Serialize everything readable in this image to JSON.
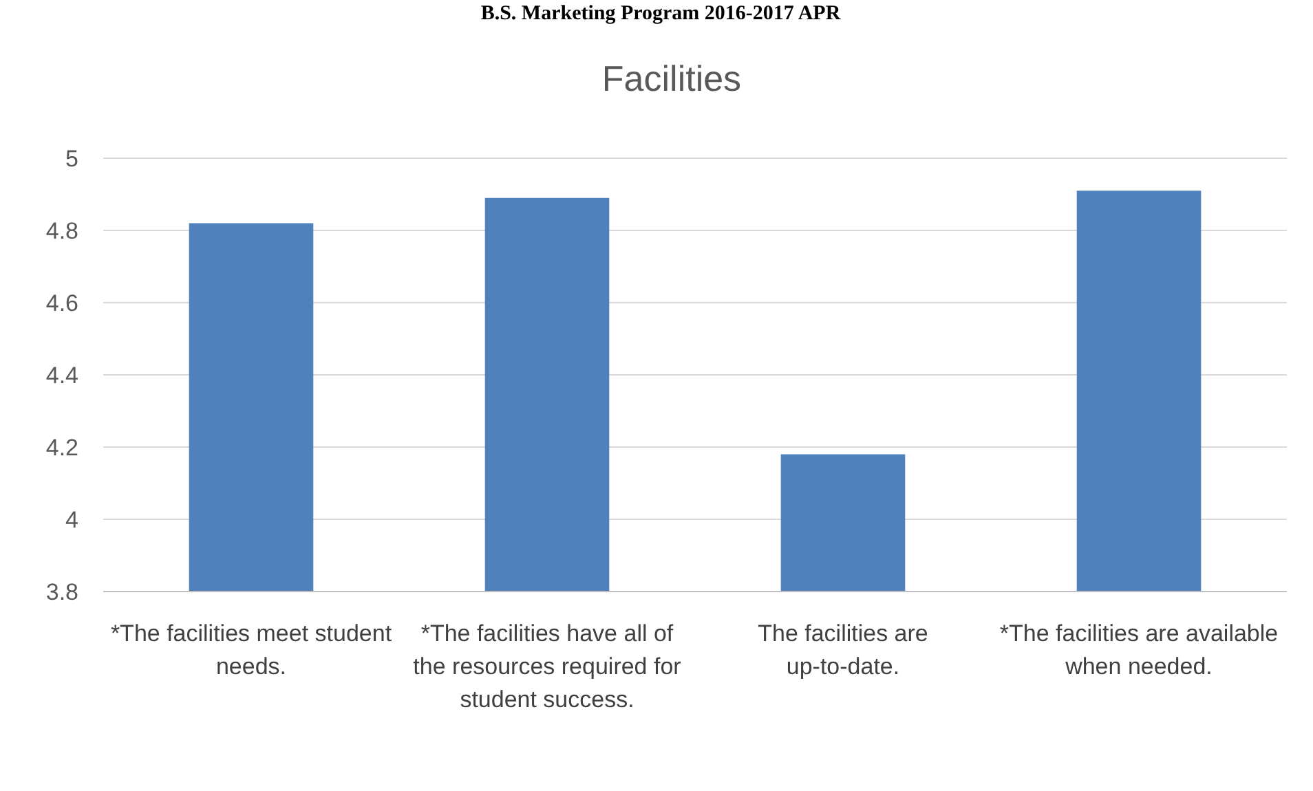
{
  "chart_data": {
    "type": "bar",
    "title": "Facilities",
    "annotations": [
      "B.S. Marketing Program 2016-2017 APR"
    ],
    "categories": [
      "*The facilities meet student needs.",
      "*The facilities have all of the resources required for student success.",
      "The facilities are up-to-date.",
      "*The facilities are available when needed."
    ],
    "values": [
      4.82,
      4.89,
      4.18,
      4.91
    ],
    "color": "#4f81bd",
    "ylim": [
      3.8,
      5
    ],
    "yticks": [
      3.8,
      4,
      4.2,
      4.4,
      4.6,
      4.8,
      5
    ],
    "grid": "y"
  }
}
